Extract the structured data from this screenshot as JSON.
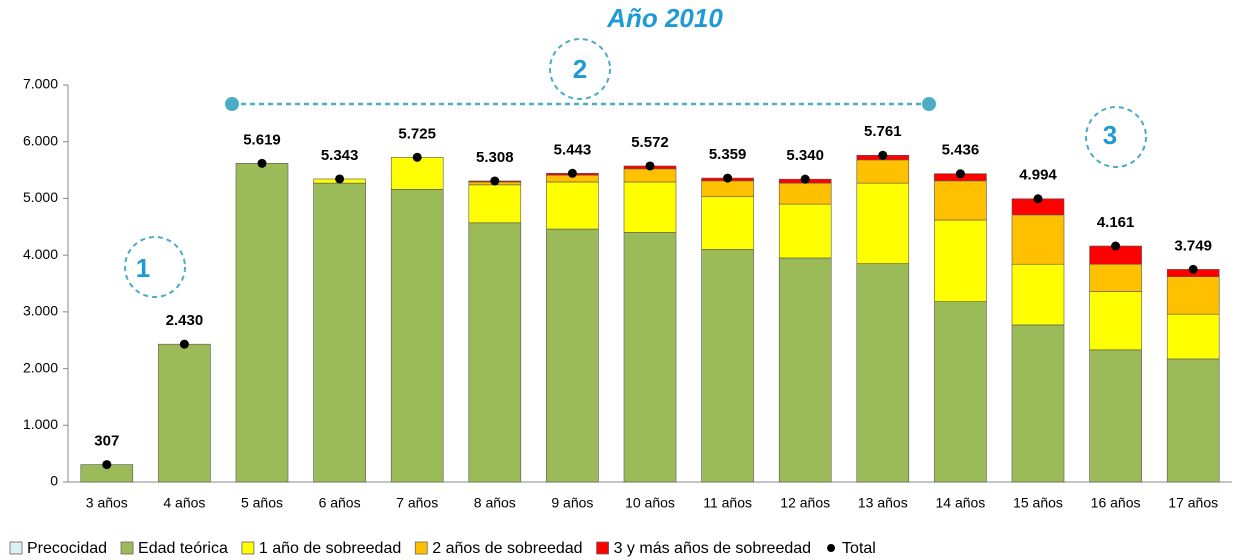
{
  "chart_data": {
    "type": "stacked_bar",
    "title": "Año 2010",
    "annotations": [
      "1",
      "2",
      "3"
    ],
    "categories": [
      "3 años",
      "4 años",
      "5 años",
      "6 años",
      "7 años",
      "8 años",
      "9 años",
      "10 años",
      "11 años",
      "12 años",
      "13 años",
      "14 años",
      "15 años",
      "16 años",
      "17 años"
    ],
    "series": [
      {
        "name": "Precocidad",
        "color": "#dbeef3",
        "values": [
          0,
          0,
          0,
          0,
          0,
          0,
          0,
          0,
          0,
          0,
          0,
          0,
          0,
          0,
          0
        ]
      },
      {
        "name": "Edad teórica",
        "color": "#9bbb59",
        "values": [
          307,
          2430,
          5619,
          5270,
          5160,
          4570,
          4460,
          4400,
          4100,
          3950,
          3850,
          3180,
          2770,
          2330,
          2170
        ]
      },
      {
        "name": "1 año de sobreedad",
        "color": "#ffff00",
        "values": [
          0,
          0,
          0,
          73,
          565,
          670,
          830,
          890,
          930,
          950,
          1420,
          1440,
          1070,
          1030,
          790
        ]
      },
      {
        "name": "2 años de sobreedad",
        "color": "#ffc000",
        "values": [
          0,
          0,
          0,
          0,
          0,
          50,
          120,
          232,
          280,
          370,
          410,
          690,
          870,
          480,
          660
        ]
      },
      {
        "name": "3 y más años de sobreedad",
        "color": "#ff0000",
        "values": [
          0,
          0,
          0,
          0,
          0,
          18,
          33,
          50,
          49,
          70,
          81,
          126,
          284,
          321,
          129
        ]
      },
      {
        "name": "Total",
        "color": "#000000",
        "kind": "dot",
        "values": [
          307,
          2430,
          5619,
          5343,
          5725,
          5308,
          5443,
          5572,
          5359,
          5340,
          5761,
          5436,
          4994,
          4161,
          3749
        ],
        "value_labels": [
          "307",
          "2.430",
          "5.619",
          "5.343",
          "5.725",
          "5.308",
          "5.443",
          "5.572",
          "5.359",
          "5.340",
          "5.761",
          "5.436",
          "4.994",
          "4.161",
          "3.749"
        ]
      }
    ],
    "ylim": [
      0,
      7000
    ],
    "yticks": [
      0,
      {
        "value": 1000,
        "label": "1.000"
      },
      {
        "value": 2000,
        "label": "2.000"
      },
      {
        "value": 3000,
        "label": "3.000"
      },
      {
        "value": 4000,
        "label": "4.000"
      },
      {
        "value": 5000,
        "label": "5.000"
      },
      {
        "value": 6000,
        "label": "6.000"
      },
      {
        "value": 7000,
        "label": "7.000"
      }
    ]
  }
}
